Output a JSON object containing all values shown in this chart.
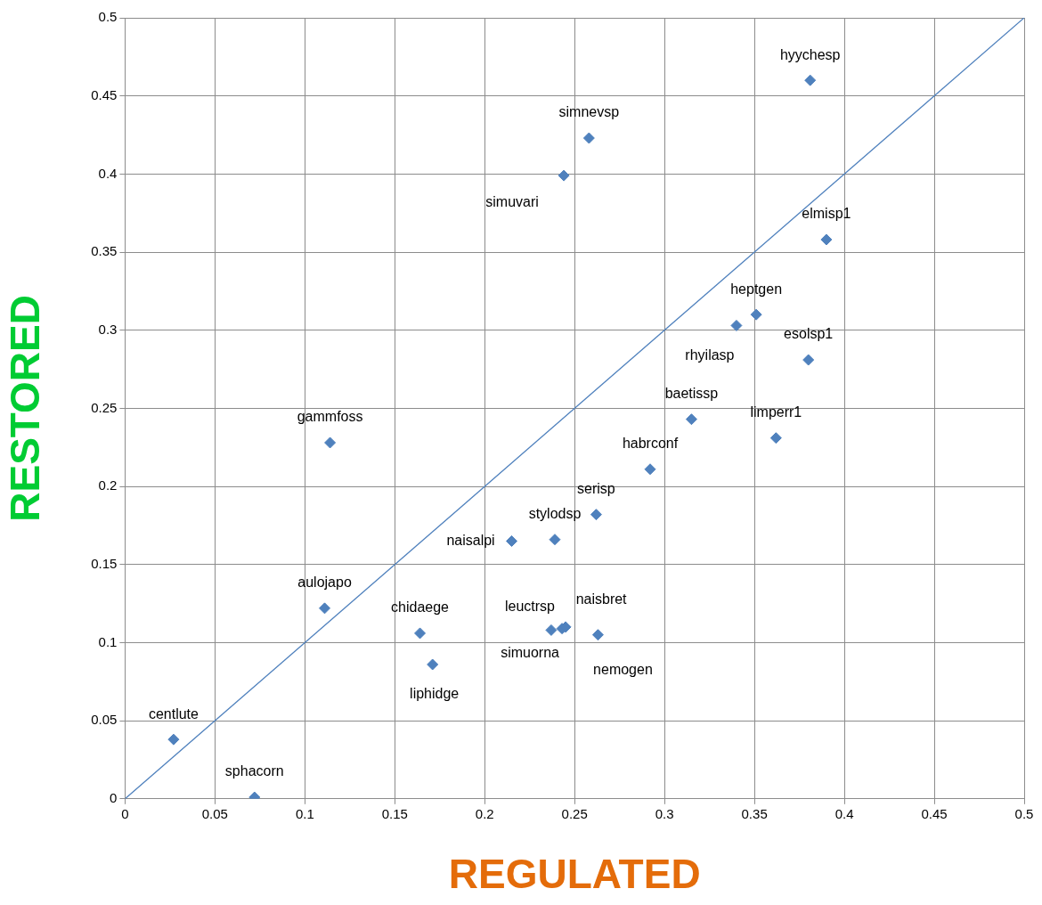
{
  "chart_data": {
    "type": "scatter",
    "xlabel": "REGULATED",
    "ylabel": "RESTORED",
    "xlim": [
      0,
      0.5
    ],
    "ylim": [
      0,
      0.5
    ],
    "xticks": [
      0,
      0.05,
      0.1,
      0.15,
      0.2,
      0.25,
      0.3,
      0.35,
      0.4,
      0.45,
      0.5
    ],
    "yticks": [
      0,
      0.05,
      0.1,
      0.15,
      0.2,
      0.25,
      0.3,
      0.35,
      0.4,
      0.45,
      0.5
    ],
    "grid": true,
    "legend": false,
    "marker": "diamond",
    "series": [
      {
        "color": "#4f81bd",
        "x": [
          0.381,
          0.258,
          0.244,
          0.39,
          0.351,
          0.34,
          0.38,
          0.315,
          0.362,
          0.114,
          0.292,
          0.262,
          0.239,
          0.215,
          0.111,
          0.164,
          0.237,
          0.243,
          0.245,
          0.263,
          0.171,
          0.027,
          0.072
        ],
        "values": [
          0.46,
          0.423,
          0.399,
          0.358,
          0.31,
          0.303,
          0.281,
          0.243,
          0.231,
          0.228,
          0.211,
          0.182,
          0.166,
          0.165,
          0.122,
          0.106,
          0.108,
          0.109,
          0.11,
          0.105,
          0.086,
          0.038,
          0.001
        ]
      },
      {
        "type": "line",
        "color": "#4f81bd",
        "marker": "none",
        "x": [
          0,
          0.5
        ],
        "values": [
          0,
          0.5
        ]
      }
    ],
    "annotations": [
      {
        "text": "hyychesp",
        "x": 0.381,
        "y": 0.46
      },
      {
        "text": "simnevsp",
        "x": 0.258,
        "y": 0.423
      },
      {
        "text": "simuvari",
        "x": 0.244,
        "y": 0.399
      },
      {
        "text": "elmisp1",
        "x": 0.39,
        "y": 0.358
      },
      {
        "text": "heptgen",
        "x": 0.351,
        "y": 0.31
      },
      {
        "text": "rhyilasp",
        "x": 0.34,
        "y": 0.303
      },
      {
        "text": "esolsp1",
        "x": 0.38,
        "y": 0.281
      },
      {
        "text": "baetissp",
        "x": 0.315,
        "y": 0.243
      },
      {
        "text": "limperr1",
        "x": 0.362,
        "y": 0.231
      },
      {
        "text": "gammfoss",
        "x": 0.114,
        "y": 0.228
      },
      {
        "text": "habrconf",
        "x": 0.292,
        "y": 0.211
      },
      {
        "text": "serisp",
        "x": 0.262,
        "y": 0.182
      },
      {
        "text": "stylodsp",
        "x": 0.239,
        "y": 0.166
      },
      {
        "text": "naisalpi",
        "x": 0.215,
        "y": 0.165
      },
      {
        "text": "aulojapo",
        "x": 0.111,
        "y": 0.122
      },
      {
        "text": "chidaege",
        "x": 0.164,
        "y": 0.106
      },
      {
        "text": "leuctrsp",
        "x": 0.237,
        "y": 0.108
      },
      {
        "text": "simuorna",
        "x": 0.243,
        "y": 0.109
      },
      {
        "text": "naisbret",
        "x": 0.245,
        "y": 0.11
      },
      {
        "text": "nemogen",
        "x": 0.263,
        "y": 0.105
      },
      {
        "text": "liphidge",
        "x": 0.171,
        "y": 0.086
      },
      {
        "text": "centlute",
        "x": 0.027,
        "y": 0.038
      },
      {
        "text": "sphacorn",
        "x": 0.072,
        "y": 0.001
      }
    ]
  }
}
